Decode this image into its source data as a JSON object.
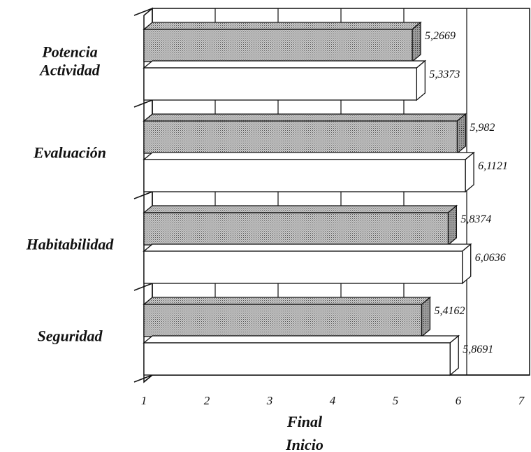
{
  "chart_data": {
    "type": "bar",
    "orientation": "horizontal",
    "categories": [
      "Potencia\nActividad",
      "Evaluación",
      "Habitabilidad",
      "Seguridad"
    ],
    "series": [
      {
        "name": "Final",
        "values": [
          5.2669,
          5.982,
          5.8374,
          5.4162
        ],
        "labels": [
          "5,2669",
          "5,982",
          "5,8374",
          "5,4162"
        ],
        "pattern": "dotted",
        "color": "#b8b8b8"
      },
      {
        "name": "Inicio",
        "values": [
          5.3373,
          6.1121,
          6.0636,
          5.8691
        ],
        "labels": [
          "5,3373",
          "6,1121",
          "6,0636",
          "5,8691"
        ],
        "pattern": "none",
        "color": "#ffffff"
      }
    ],
    "xlim": [
      1,
      7
    ],
    "xticks": [
      "1",
      "2",
      "3",
      "4",
      "5",
      "6",
      "7"
    ],
    "grid": true,
    "legend_placement": "bottom",
    "three_d": true
  }
}
